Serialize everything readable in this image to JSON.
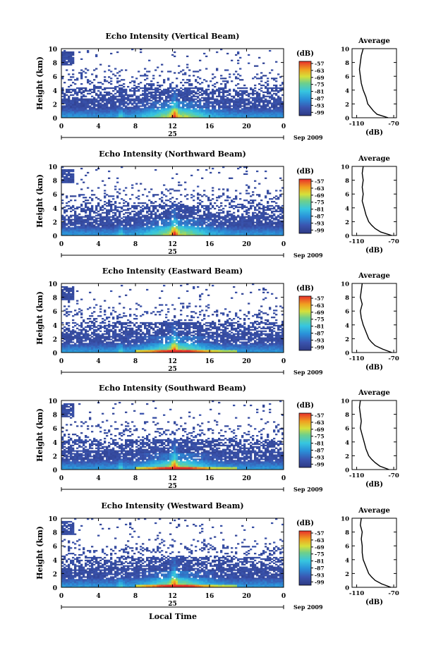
{
  "date_label": "Sep 2009",
  "day_label": "25",
  "x_axis_label": "Local Time",
  "ylabel": "Height (km)",
  "colorbar_unit": "(dB)",
  "avg_title": "Average",
  "avg_xlabel": "(dB)",
  "avg_ticks": [
    "-110",
    "-70"
  ],
  "x_ticks": [
    "0",
    "4",
    "8",
    "12",
    "16",
    "20",
    "0"
  ],
  "y_ticks": [
    "0",
    "2",
    "4",
    "6",
    "8",
    "10"
  ],
  "colorbar_ticks": [
    "-57",
    "-63",
    "-69",
    "-75",
    "-81",
    "-87",
    "-93",
    "-99"
  ],
  "colors": {
    "low": "#2e3a84",
    "mid": "#2aa7e0",
    "high": "#e8302a",
    "axis": "#000000"
  },
  "chart_data": [
    {
      "type": "heatmap",
      "title": "Echo Intensity (Vertical Beam)",
      "xlim": [
        0,
        24
      ],
      "ylim": [
        0,
        10
      ],
      "clim": [
        -99,
        -57
      ],
      "avg_profile": {
        "height_km": [
          0,
          0.5,
          1,
          1.5,
          2,
          3,
          4,
          5,
          6,
          7,
          8,
          9,
          10
        ],
        "dB": [
          -76,
          -88,
          -92,
          -95,
          -98,
          -100,
          -103,
          -105,
          -106,
          -107,
          -106,
          -105,
          -103
        ]
      }
    },
    {
      "type": "heatmap",
      "title": "Echo Intensity (Northward Beam)",
      "xlim": [
        0,
        24
      ],
      "ylim": [
        0,
        10
      ],
      "clim": [
        -99,
        -57
      ],
      "avg_profile": {
        "height_km": [
          0,
          0.5,
          1,
          1.5,
          2,
          3,
          4,
          5,
          6,
          7,
          8,
          9,
          10
        ],
        "dB": [
          -72,
          -84,
          -90,
          -94,
          -97,
          -100,
          -102,
          -104,
          -103,
          -104,
          -103,
          -104,
          -103
        ]
      }
    },
    {
      "type": "heatmap",
      "title": "Echo Intensity (Eastward Beam)",
      "xlim": [
        0,
        24
      ],
      "ylim": [
        0,
        10
      ],
      "clim": [
        -99,
        -57
      ],
      "avg_profile": {
        "height_km": [
          0,
          0.5,
          1,
          1.5,
          2,
          3,
          4,
          5,
          6,
          7,
          8,
          9,
          10
        ],
        "dB": [
          -72,
          -82,
          -90,
          -94,
          -97,
          -100,
          -103,
          -105,
          -106,
          -104,
          -106,
          -105,
          -104
        ]
      }
    },
    {
      "type": "heatmap",
      "title": "Echo Intensity (Southward Beam)",
      "xlim": [
        0,
        24
      ],
      "ylim": [
        0,
        10
      ],
      "clim": [
        -99,
        -57
      ],
      "avg_profile": {
        "height_km": [
          0,
          0.5,
          1,
          1.5,
          2,
          3,
          4,
          5,
          6,
          7,
          8,
          9,
          10
        ],
        "dB": [
          -75,
          -85,
          -90,
          -94,
          -97,
          -100,
          -102,
          -104,
          -106,
          -105,
          -106,
          -107,
          -106
        ]
      }
    },
    {
      "type": "heatmap",
      "title": "Echo Intensity (Westward Beam)",
      "xlim": [
        0,
        24
      ],
      "ylim": [
        0,
        10
      ],
      "clim": [
        -99,
        -57
      ],
      "avg_profile": {
        "height_km": [
          0,
          0.5,
          1,
          1.5,
          2,
          3,
          4,
          5,
          6,
          7,
          8,
          9,
          10
        ],
        "dB": [
          -73,
          -83,
          -90,
          -94,
          -97,
          -100,
          -103,
          -104,
          -104,
          -105,
          -104,
          -106,
          -105
        ]
      }
    }
  ]
}
